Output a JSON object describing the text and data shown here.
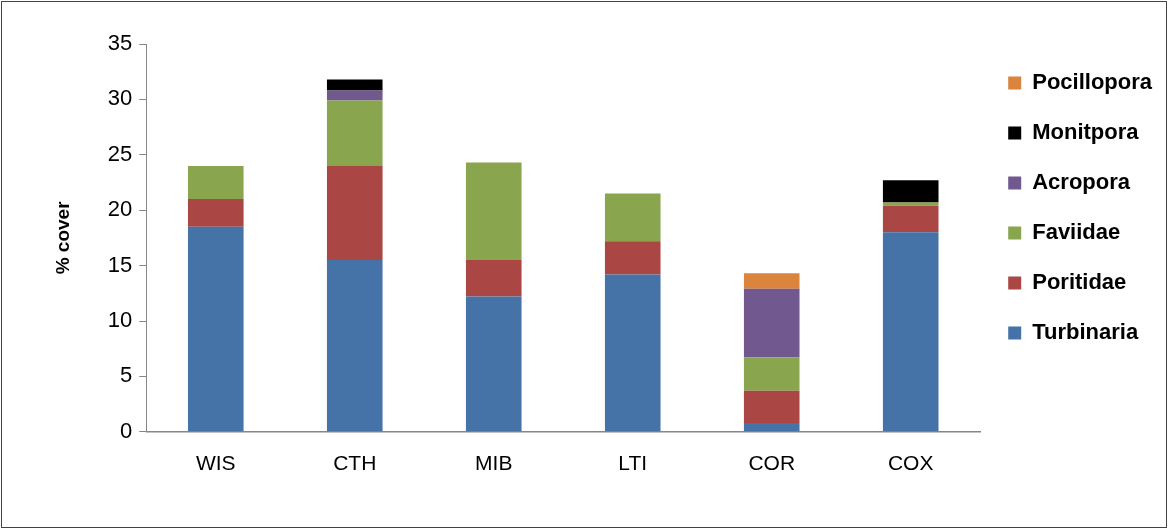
{
  "chart_data": {
    "type": "bar",
    "stacked": true,
    "ylabel": "% cover",
    "categories": [
      "WIS",
      "CTH",
      "MIB",
      "LTI",
      "COR",
      "COX"
    ],
    "series": [
      {
        "name": "Turbinaria",
        "color": "#4572a7",
        "values": [
          18.5,
          15.5,
          12.2,
          14.2,
          0.8,
          18.0
        ]
      },
      {
        "name": "Poritidae",
        "color": "#aa4643",
        "values": [
          2.5,
          8.5,
          3.3,
          3.0,
          2.9,
          2.4
        ]
      },
      {
        "name": "Faviidae",
        "color": "#89a54e",
        "values": [
          3.0,
          5.9,
          8.8,
          4.3,
          3.0,
          0.3
        ]
      },
      {
        "name": "Acropora",
        "color": "#71588f",
        "values": [
          null,
          0.9,
          null,
          null,
          6.2,
          null
        ]
      },
      {
        "name": "Monitpora",
        "color": "#000000",
        "values": [
          null,
          1.0,
          null,
          null,
          null,
          2.0
        ]
      },
      {
        "name": "Pocillopora",
        "color": "#db843d",
        "values": [
          null,
          null,
          null,
          null,
          1.4,
          null
        ]
      }
    ],
    "ylim": [
      0,
      35
    ],
    "yticks": [
      0,
      5,
      10,
      15,
      20,
      25,
      30,
      35
    ],
    "legend": "top right",
    "grid": false
  }
}
